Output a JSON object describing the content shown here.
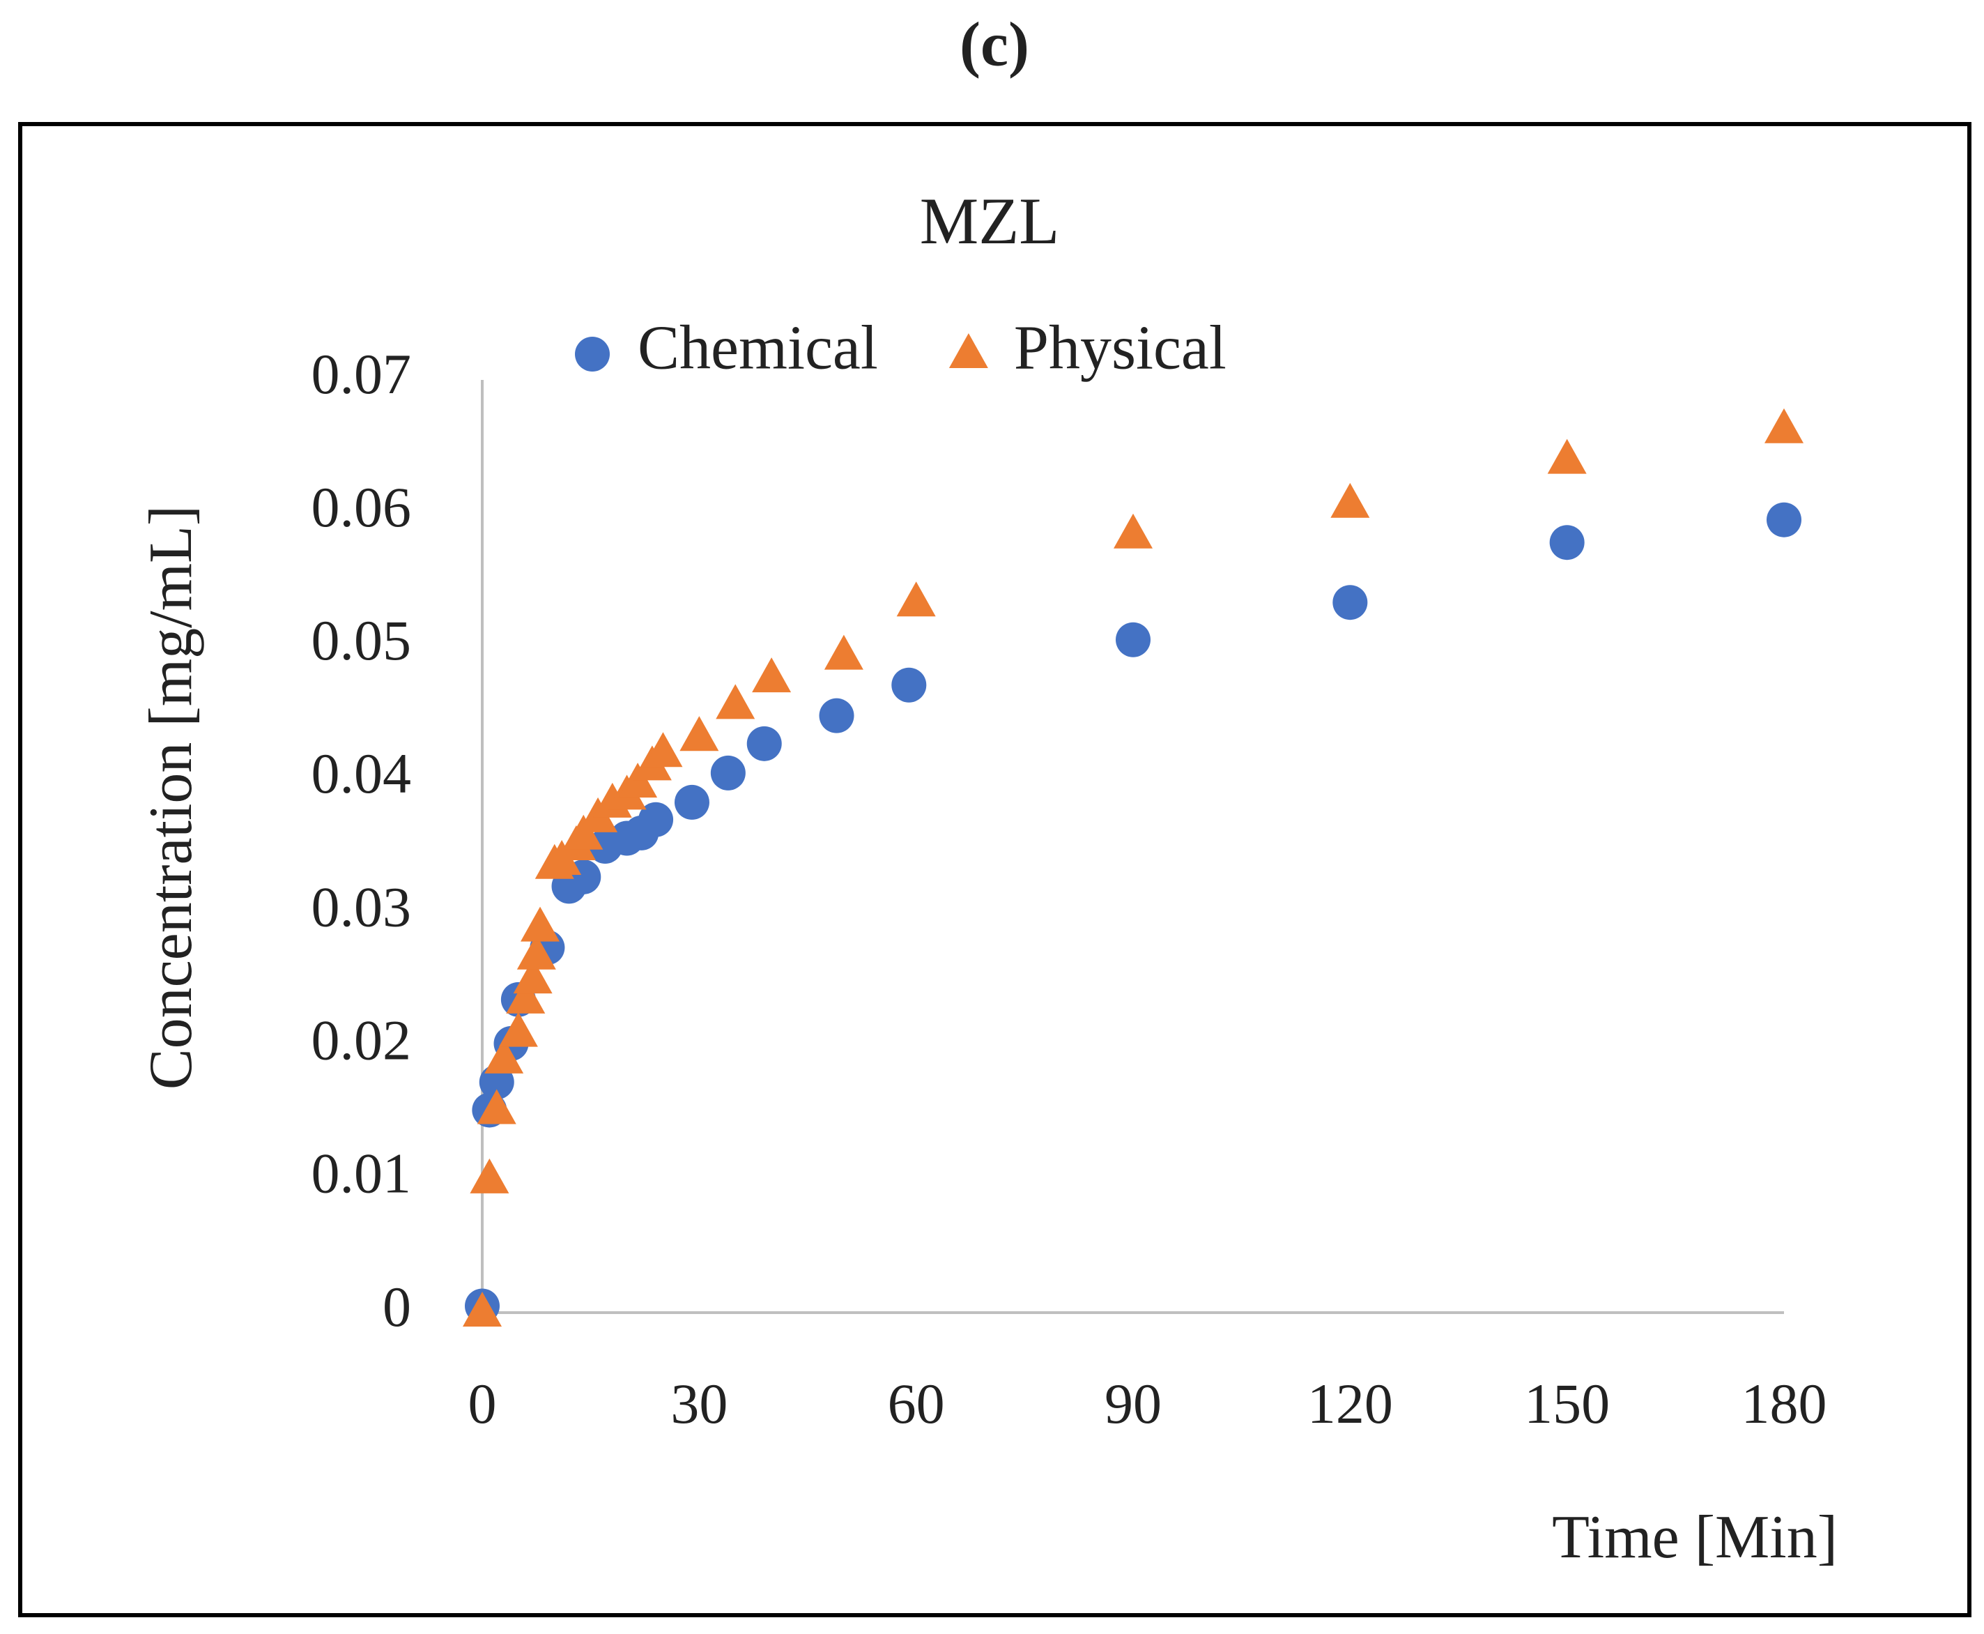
{
  "chart_data": {
    "type": "scatter",
    "panel_label": "(c)",
    "title": "MZL",
    "xlabel": "Time [Min]",
    "ylabel": "Concentration [mg/mL]",
    "xlim": [
      0,
      180
    ],
    "xticks": [
      0,
      30,
      60,
      90,
      120,
      150,
      180
    ],
    "ylim": [
      0,
      0.07
    ],
    "yticks": [
      0,
      0.01,
      0.02,
      0.03,
      0.04,
      0.05,
      0.06,
      0.07
    ],
    "grid": false,
    "legend": "top",
    "series": [
      {
        "name": "Chemical",
        "color": "#4472c4",
        "marker": "circle",
        "x": [
          0,
          1,
          2,
          4,
          5,
          9,
          12,
          14,
          17,
          20,
          22,
          24,
          29,
          34,
          39,
          49,
          59,
          90,
          120,
          150,
          180
        ],
        "values": [
          0.0005,
          0.0152,
          0.0173,
          0.0202,
          0.0235,
          0.0274,
          0.032,
          0.0327,
          0.035,
          0.0356,
          0.036,
          0.037,
          0.0383,
          0.0405,
          0.0427,
          0.0448,
          0.0471,
          0.0505,
          0.0533,
          0.0578,
          0.0595
        ]
      },
      {
        "name": "Physical",
        "color": "#ed7d31",
        "marker": "triangle",
        "x": [
          0,
          1,
          2,
          3,
          5,
          6,
          7,
          7.5,
          8,
          10,
          11,
          13,
          14,
          16,
          18,
          20,
          21.5,
          23.5,
          25,
          30,
          35,
          40,
          50,
          60,
          90,
          120,
          150,
          180
        ],
        "values": [
          0,
          0.01,
          0.0152,
          0.019,
          0.021,
          0.0235,
          0.025,
          0.0268,
          0.0289,
          0.0336,
          0.0339,
          0.035,
          0.0358,
          0.0371,
          0.0382,
          0.0388,
          0.0397,
          0.041,
          0.042,
          0.0432,
          0.0456,
          0.0476,
          0.0493,
          0.0533,
          0.0584,
          0.0607,
          0.064,
          0.0663
        ]
      }
    ]
  }
}
